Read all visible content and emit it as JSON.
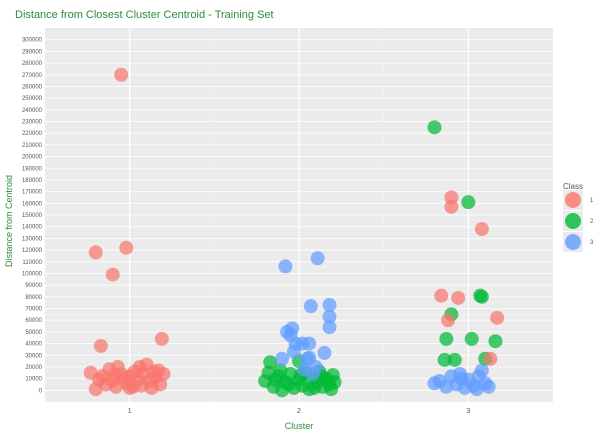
{
  "chart_data": {
    "type": "scatter",
    "title": "Distance from Closest Cluster Centroid - Training Set",
    "xlabel": "Cluster",
    "ylabel": "Distance from Centroid",
    "categories": [
      "1",
      "2",
      "3"
    ],
    "ylim": [
      -10000,
      310000
    ],
    "y_ticks": [
      0,
      10000,
      20000,
      30000,
      40000,
      50000,
      60000,
      70000,
      80000,
      90000,
      100000,
      110000,
      120000,
      130000,
      140000,
      150000,
      160000,
      170000,
      180000,
      190000,
      200000,
      210000,
      220000,
      230000,
      240000,
      250000,
      260000,
      270000,
      280000,
      290000,
      300000
    ],
    "y_tick_labels": [
      "0",
      "10000",
      "20000",
      "30000",
      "40000",
      "50000",
      "60000",
      "70000",
      "80000",
      "90000",
      "100000",
      "110000",
      "120000",
      "130000",
      "140000",
      "150000",
      "160000",
      "170000",
      "180000",
      "190000",
      "200000",
      "210000",
      "220000",
      "230000",
      "240000",
      "250000",
      "260000",
      "270000",
      "280000",
      "290000",
      "300000"
    ],
    "grid": true,
    "legend": {
      "title": "Class",
      "position": "right",
      "entries": [
        "1",
        "2",
        "3"
      ]
    },
    "series": [
      {
        "name": "1",
        "color": "#f8766d",
        "points": [
          [
            0.95,
            270000
          ],
          [
            0.8,
            118000
          ],
          [
            0.98,
            122000
          ],
          [
            0.9,
            99000
          ],
          [
            1.19,
            44000
          ],
          [
            0.83,
            38000
          ],
          [
            0.8,
            1000
          ],
          [
            0.77,
            15000
          ],
          [
            0.84,
            12000
          ],
          [
            0.86,
            5000
          ],
          [
            0.88,
            18000
          ],
          [
            0.9,
            8000
          ],
          [
            0.92,
            3000
          ],
          [
            0.93,
            20000
          ],
          [
            0.95,
            14000
          ],
          [
            0.97,
            10000
          ],
          [
            0.98,
            6000
          ],
          [
            1.0,
            12000
          ],
          [
            1.02,
            3000
          ],
          [
            1.03,
            16000
          ],
          [
            1.05,
            9000
          ],
          [
            1.07,
            4000
          ],
          [
            1.08,
            14000
          ],
          [
            1.1,
            22000
          ],
          [
            1.12,
            8000
          ],
          [
            1.13,
            2000
          ],
          [
            1.15,
            11000
          ],
          [
            1.17,
            17000
          ],
          [
            1.2,
            14000
          ],
          [
            1.18,
            5000
          ],
          [
            0.82,
            9000
          ],
          [
            1.0,
            2000
          ],
          [
            1.06,
            20000
          ],
          [
            0.91,
            13000
          ],
          [
            1.14,
            16000
          ]
        ]
      },
      {
        "name": "2",
        "color": "#00ba38",
        "points": [
          [
            2.0,
            25000
          ],
          [
            1.83,
            24000
          ],
          [
            1.8,
            8000
          ],
          [
            1.85,
            3000
          ],
          [
            1.88,
            12000
          ],
          [
            1.9,
            0
          ],
          [
            1.92,
            7000
          ],
          [
            1.95,
            14000
          ],
          [
            1.97,
            2000
          ],
          [
            2.0,
            9000
          ],
          [
            2.02,
            4000
          ],
          [
            2.04,
            15000
          ],
          [
            2.06,
            1000
          ],
          [
            2.08,
            11000
          ],
          [
            2.1,
            6000
          ],
          [
            2.12,
            16000
          ],
          [
            2.14,
            3000
          ],
          [
            2.16,
            10000
          ],
          [
            2.18,
            5000
          ],
          [
            2.2,
            13000
          ],
          [
            2.21,
            7000
          ],
          [
            2.19,
            1000
          ],
          [
            1.82,
            15000
          ],
          [
            1.86,
            9000
          ],
          [
            2.13,
            12000
          ],
          [
            1.94,
            5000
          ],
          [
            2.09,
            2000
          ],
          [
            2.01,
            13000
          ],
          [
            1.89,
            17000
          ],
          [
            2.17,
            8000
          ]
        ]
      },
      {
        "name": "3",
        "color": "#619cff",
        "points": [
          [
            1.92,
            106000
          ],
          [
            2.11,
            113000
          ],
          [
            1.96,
            53000
          ],
          [
            1.93,
            50000
          ],
          [
            1.95,
            47000
          ],
          [
            1.98,
            40000
          ],
          [
            2.02,
            40000
          ],
          [
            2.06,
            40000
          ],
          [
            2.07,
            72000
          ],
          [
            2.18,
            73000
          ],
          [
            2.18,
            63000
          ],
          [
            2.18,
            54000
          ],
          [
            2.15,
            32000
          ],
          [
            1.9,
            27000
          ],
          [
            2.05,
            27000
          ],
          [
            2.1,
            20000
          ],
          [
            2.08,
            14000
          ],
          [
            2.06,
            28000
          ],
          [
            1.97,
            33000
          ],
          [
            2.03,
            18000
          ]
        ]
      },
      {
        "name": "2",
        "color": "#00ba38",
        "points": [
          [
            2.8,
            225000
          ],
          [
            3.0,
            161000
          ],
          [
            2.9,
            65000
          ],
          [
            2.87,
            44000
          ],
          [
            3.07,
            81000
          ],
          [
            3.08,
            80000
          ],
          [
            3.02,
            44000
          ],
          [
            3.16,
            42000
          ],
          [
            2.86,
            26000
          ],
          [
            2.92,
            26000
          ],
          [
            3.1,
            27000
          ]
        ]
      },
      {
        "name": "1",
        "color": "#f8766d",
        "points": [
          [
            2.9,
            165000
          ],
          [
            2.9,
            157000
          ],
          [
            3.08,
            138000
          ],
          [
            2.84,
            81000
          ],
          [
            2.94,
            79000
          ],
          [
            2.88,
            60000
          ],
          [
            3.17,
            62000
          ],
          [
            3.13,
            27000
          ]
        ]
      },
      {
        "name": "3",
        "color": "#619cff",
        "points": [
          [
            2.8,
            6000
          ],
          [
            2.83,
            8000
          ],
          [
            2.87,
            3000
          ],
          [
            2.9,
            12000
          ],
          [
            2.93,
            5000
          ],
          [
            2.96,
            10000
          ],
          [
            2.98,
            2000
          ],
          [
            3.0,
            9000
          ],
          [
            3.03,
            4000
          ],
          [
            3.06,
            12000
          ],
          [
            3.08,
            17000
          ],
          [
            3.1,
            6000
          ],
          [
            3.12,
            3000
          ],
          [
            2.95,
            14000
          ],
          [
            3.05,
            1000
          ]
        ]
      }
    ]
  }
}
